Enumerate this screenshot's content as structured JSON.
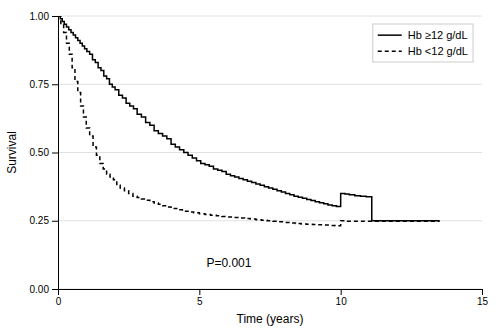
{
  "chart_data": {
    "type": "line",
    "line_style": "step",
    "xlabel": "Time (years)",
    "ylabel": "Survival",
    "xlim": [
      0,
      15
    ],
    "ylim": [
      0.0,
      1.0
    ],
    "xticks": [
      0,
      5,
      10,
      15
    ],
    "yticks": [
      {
        "value": 0.0,
        "label": "0.00"
      },
      {
        "value": 0.25,
        "label": "0.25"
      },
      {
        "value": 0.5,
        "label": "0.50"
      },
      {
        "value": 0.75,
        "label": "0.75"
      },
      {
        "value": 1.0,
        "label": "1.00"
      }
    ],
    "grid": true,
    "legend": "upper right",
    "annotation": "P=0.001",
    "series": [
      {
        "name": "Hb ≥12 g/dL",
        "color": "#000000",
        "line_style": "solid",
        "x": [
          0,
          0.08,
          0.15,
          0.22,
          0.3,
          0.38,
          0.46,
          0.54,
          0.62,
          0.7,
          0.78,
          0.86,
          0.94,
          1.02,
          1.12,
          1.22,
          1.32,
          1.42,
          1.52,
          1.62,
          1.72,
          1.82,
          1.92,
          2.02,
          2.15,
          2.28,
          2.41,
          2.54,
          2.67,
          2.8,
          2.95,
          3.1,
          3.25,
          3.4,
          3.55,
          3.7,
          3.85,
          4.0,
          4.15,
          4.3,
          4.45,
          4.6,
          4.75,
          4.9,
          5.05,
          5.2,
          5.35,
          5.5,
          5.65,
          5.8,
          5.95,
          6.1,
          6.25,
          6.4,
          6.55,
          6.7,
          6.85,
          7.0,
          7.15,
          7.3,
          7.45,
          7.6,
          7.75,
          7.9,
          8.05,
          8.2,
          8.35,
          8.5,
          8.65,
          8.8,
          8.95,
          9.1,
          9.25,
          9.4,
          9.55,
          9.7,
          9.85,
          10.0,
          10.15,
          10.3,
          10.5,
          10.7,
          10.9,
          11.1,
          13.5
        ],
        "values": [
          1.0,
          0.99,
          0.98,
          0.97,
          0.96,
          0.95,
          0.94,
          0.93,
          0.92,
          0.91,
          0.9,
          0.89,
          0.88,
          0.87,
          0.86,
          0.84,
          0.83,
          0.81,
          0.8,
          0.78,
          0.77,
          0.75,
          0.74,
          0.73,
          0.71,
          0.7,
          0.68,
          0.67,
          0.66,
          0.64,
          0.63,
          0.61,
          0.6,
          0.58,
          0.57,
          0.56,
          0.55,
          0.53,
          0.52,
          0.51,
          0.5,
          0.49,
          0.48,
          0.47,
          0.46,
          0.455,
          0.45,
          0.44,
          0.435,
          0.43,
          0.42,
          0.415,
          0.41,
          0.405,
          0.4,
          0.395,
          0.39,
          0.385,
          0.38,
          0.375,
          0.37,
          0.365,
          0.36,
          0.355,
          0.35,
          0.345,
          0.34,
          0.336,
          0.332,
          0.328,
          0.324,
          0.32,
          0.316,
          0.312,
          0.308,
          0.305,
          0.302,
          0.35,
          0.348,
          0.345,
          0.342,
          0.34,
          0.338,
          0.25,
          0.25
        ]
      },
      {
        "name": "Hb <12 g/dL",
        "color": "#000000",
        "line_style": "dashed",
        "x": [
          0,
          0.1,
          0.2,
          0.3,
          0.4,
          0.5,
          0.6,
          0.7,
          0.8,
          0.9,
          1.0,
          1.12,
          1.24,
          1.36,
          1.48,
          1.6,
          1.72,
          1.84,
          1.96,
          2.08,
          2.2,
          2.35,
          2.5,
          2.65,
          2.8,
          2.95,
          3.1,
          3.25,
          3.4,
          3.55,
          3.7,
          3.85,
          4.0,
          4.2,
          4.4,
          4.6,
          4.8,
          5.0,
          5.2,
          5.4,
          5.6,
          5.8,
          6.0,
          6.2,
          6.4,
          6.6,
          6.8,
          7.0,
          7.2,
          7.4,
          7.6,
          7.8,
          8.0,
          8.2,
          8.4,
          8.6,
          8.8,
          9.0,
          9.2,
          9.4,
          9.6,
          9.8,
          10.0,
          10.2,
          13.5
        ],
        "values": [
          1.0,
          0.97,
          0.94,
          0.9,
          0.86,
          0.81,
          0.76,
          0.72,
          0.67,
          0.63,
          0.59,
          0.56,
          0.52,
          0.49,
          0.46,
          0.44,
          0.42,
          0.41,
          0.4,
          0.38,
          0.37,
          0.36,
          0.35,
          0.34,
          0.335,
          0.33,
          0.325,
          0.32,
          0.315,
          0.31,
          0.305,
          0.3,
          0.295,
          0.29,
          0.285,
          0.282,
          0.279,
          0.276,
          0.273,
          0.27,
          0.268,
          0.266,
          0.264,
          0.262,
          0.26,
          0.258,
          0.256,
          0.254,
          0.252,
          0.25,
          0.248,
          0.246,
          0.244,
          0.242,
          0.24,
          0.238,
          0.237,
          0.236,
          0.235,
          0.234,
          0.233,
          0.232,
          0.25,
          0.248,
          0.248
        ]
      }
    ]
  }
}
